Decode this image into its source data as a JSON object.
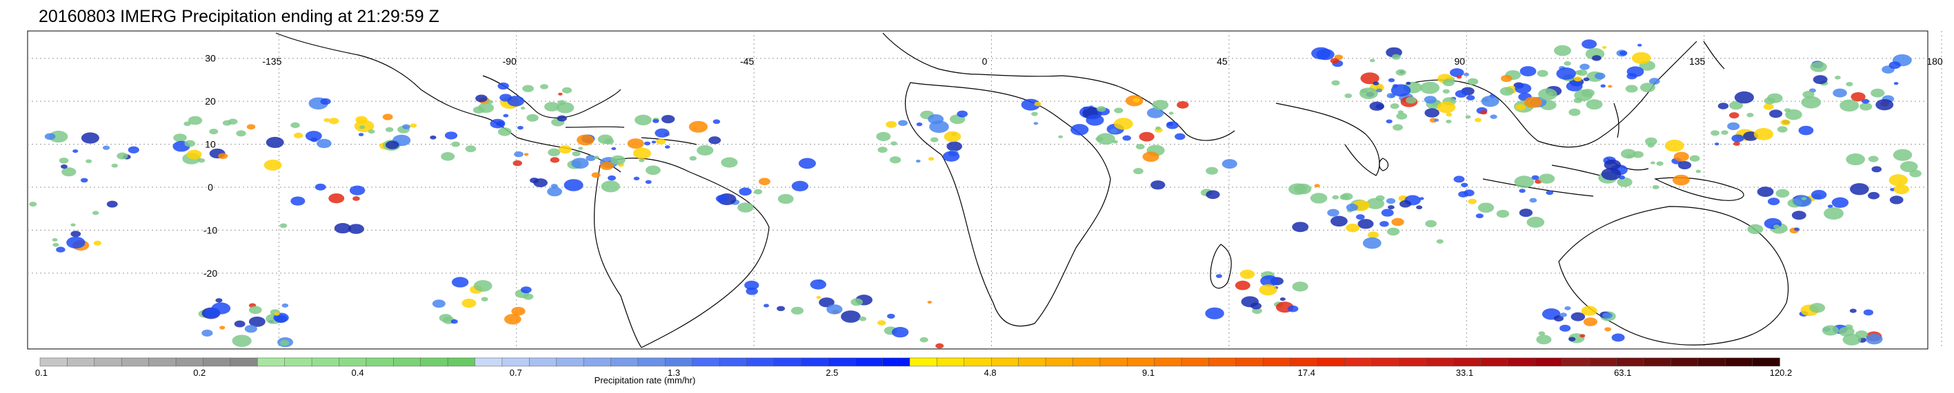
{
  "title": "20160803 IMERG Precipitation ending at 21:29:59 Z",
  "map": {
    "lon_labels": [
      "-135",
      "-90",
      "-45",
      "0",
      "45",
      "90",
      "135",
      "180"
    ],
    "lat_labels": [
      "30",
      "20",
      "10",
      "0",
      "-10",
      "-20"
    ],
    "lon_values": [
      -135,
      -90,
      -45,
      0,
      45,
      90,
      135,
      180
    ],
    "lat_values": [
      30,
      20,
      10,
      0,
      -10,
      -20
    ],
    "grid": true
  },
  "colorbar": {
    "label": "Precipitation rate (mm/hr)",
    "tick_labels": [
      "0.1",
      "0.2",
      "0.4",
      "0.7",
      "1.3",
      "2.5",
      "4.8",
      "9.1",
      "17.4",
      "33.1",
      "63.1",
      "120.2"
    ],
    "groups": [
      {
        "colors": [
          "#c6c6c6",
          "#bdbdbd",
          "#b4b4b4",
          "#ababab",
          "#a3a3a3",
          "#9a9a9a",
          "#919191",
          "#888888"
        ]
      },
      {
        "colors": [
          "#a8e6a0",
          "#9fe398",
          "#96df8f",
          "#8cdb86",
          "#83d77d",
          "#7ad374",
          "#71cf6b",
          "#68cb62"
        ]
      },
      {
        "colors": [
          "#c9d8f7",
          "#b9ccf5",
          "#a9c0f3",
          "#99b4f0",
          "#89a8ee",
          "#799ceb",
          "#6990e9",
          "#5984e6"
        ]
      },
      {
        "colors": [
          "#4a6ef8",
          "#3f62f8",
          "#3456f9",
          "#294afa",
          "#1e3efa",
          "#1332fb",
          "#0826fc",
          "#001afd"
        ]
      },
      {
        "colors": [
          "#fff200",
          "#ffe400",
          "#ffd600",
          "#ffc800",
          "#ffba00",
          "#ffac00",
          "#ff9e00",
          "#ff9000"
        ]
      },
      {
        "colors": [
          "#ff8a00",
          "#fc7c00",
          "#f96e00",
          "#f66000",
          "#f35200",
          "#f04400",
          "#ed3600",
          "#ea2800"
        ]
      },
      {
        "colors": [
          "#e22b15",
          "#d92515",
          "#cf1f14",
          "#c51913",
          "#bb1312",
          "#b10d11",
          "#a70710",
          "#9d010f"
        ]
      },
      {
        "colors": [
          "#8c1a1a",
          "#7f1616",
          "#721212",
          "#650e0e",
          "#580a0a",
          "#4b0606",
          "#3e0202",
          "#320000"
        ]
      }
    ]
  },
  "rain_colors": [
    "#7fc98a",
    "#1e4bf5",
    "#1a2eb0",
    "#4a86ee",
    "#ffd200",
    "#ff8a00",
    "#e32a14"
  ]
}
